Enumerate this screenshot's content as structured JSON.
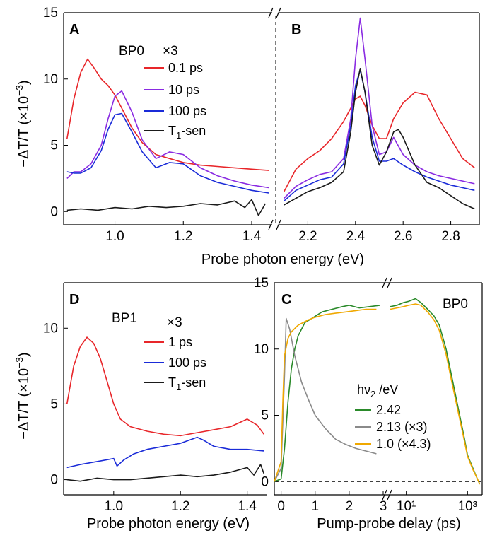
{
  "figure": {
    "top_xlabel": "Probe photon energy (eV)",
    "top_ylabel": "−ΔT/T (×10",
    "top_ylabel_exp": "−3",
    "top_ylabel_end": ")",
    "bottom_left_xlabel": "Probe photon energy (eV)",
    "bottom_left_ylabel": "−ΔT/T (×10",
    "bottom_left_ylabel_exp": "−3",
    "bottom_left_ylabel_end": ")",
    "bottom_right_xlabel": "Pump-probe delay (ps)"
  },
  "chart_data": [
    {
      "panel": "A",
      "type": "line",
      "sample": "BP0",
      "legend_title": "×3",
      "xlim": [
        0.85,
        1.46
      ],
      "ylim": [
        -1,
        15
      ],
      "x_ticks": [
        "1.0",
        "1.2",
        "1.4"
      ],
      "y_ticks": [
        "0",
        "5",
        "10",
        "15"
      ],
      "series": [
        {
          "name": "0.1 ps",
          "color": "#e8262a",
          "x": [
            0.86,
            0.88,
            0.9,
            0.92,
            0.94,
            0.96,
            0.98,
            1.0,
            1.02,
            1.05,
            1.08,
            1.12,
            1.16,
            1.2,
            1.25,
            1.3,
            1.35,
            1.4,
            1.45
          ],
          "y": [
            5.5,
            8.5,
            10.5,
            11.5,
            10.8,
            10.0,
            9.5,
            8.8,
            7.8,
            6.3,
            5.2,
            4.3,
            4.0,
            3.7,
            3.5,
            3.4,
            3.3,
            3.2,
            3.1
          ]
        },
        {
          "name": "10 ps",
          "color": "#8a2be2",
          "x": [
            0.86,
            0.88,
            0.9,
            0.93,
            0.96,
            0.98,
            1.0,
            1.02,
            1.05,
            1.08,
            1.12,
            1.16,
            1.2,
            1.25,
            1.3,
            1.35,
            1.4,
            1.45
          ],
          "y": [
            2.5,
            3.0,
            3.0,
            3.6,
            5.0,
            7.0,
            8.7,
            9.1,
            7.5,
            5.4,
            4.0,
            4.5,
            4.3,
            3.3,
            2.7,
            2.3,
            2.0,
            1.8
          ]
        },
        {
          "name": "100 ps",
          "color": "#1a2bd8",
          "x": [
            0.86,
            0.88,
            0.9,
            0.93,
            0.96,
            0.98,
            1.0,
            1.02,
            1.05,
            1.08,
            1.12,
            1.16,
            1.2,
            1.25,
            1.3,
            1.35,
            1.4,
            1.45
          ],
          "y": [
            3.0,
            2.9,
            2.9,
            3.3,
            4.6,
            6.2,
            7.3,
            7.4,
            6.0,
            4.5,
            3.3,
            3.7,
            3.6,
            2.7,
            2.2,
            1.9,
            1.6,
            1.4
          ]
        },
        {
          "name": "T1-sen",
          "color": "#1a1a1a",
          "x": [
            0.86,
            0.9,
            0.95,
            1.0,
            1.05,
            1.1,
            1.15,
            1.2,
            1.25,
            1.3,
            1.35,
            1.38,
            1.4,
            1.42,
            1.44
          ],
          "y": [
            0.1,
            0.2,
            0.1,
            0.3,
            0.2,
            0.4,
            0.3,
            0.4,
            0.6,
            0.5,
            0.8,
            0.3,
            0.9,
            -0.3,
            0.6
          ]
        }
      ]
    },
    {
      "panel": "B",
      "type": "line",
      "xlim": [
        2.08,
        2.92
      ],
      "ylim": [
        -1,
        15
      ],
      "x_ticks": [
        "2.2",
        "2.4",
        "2.6",
        "2.8"
      ],
      "series": [
        {
          "name": "0.1 ps",
          "color": "#e8262a",
          "x": [
            2.1,
            2.15,
            2.2,
            2.25,
            2.3,
            2.35,
            2.38,
            2.4,
            2.42,
            2.44,
            2.47,
            2.5,
            2.53,
            2.56,
            2.6,
            2.65,
            2.7,
            2.75,
            2.8,
            2.85,
            2.9
          ],
          "y": [
            1.5,
            3.2,
            4.0,
            4.6,
            5.5,
            6.8,
            7.8,
            8.5,
            8.7,
            8.0,
            6.5,
            5.5,
            5.5,
            7.0,
            8.2,
            9.0,
            8.8,
            7.0,
            5.5,
            4.0,
            3.3
          ]
        },
        {
          "name": "10 ps",
          "color": "#8a2be2",
          "x": [
            2.1,
            2.15,
            2.2,
            2.25,
            2.3,
            2.35,
            2.38,
            2.4,
            2.42,
            2.44,
            2.47,
            2.5,
            2.53,
            2.56,
            2.6,
            2.65,
            2.7,
            2.75,
            2.8,
            2.85,
            2.9
          ],
          "y": [
            1.0,
            1.9,
            2.4,
            2.8,
            3.0,
            4.0,
            7.0,
            11.5,
            14.6,
            11.5,
            6.5,
            4.3,
            4.5,
            5.6,
            4.3,
            3.5,
            3.0,
            2.7,
            2.5,
            2.3,
            2.1
          ]
        },
        {
          "name": "100 ps",
          "color": "#1a2bd8",
          "x": [
            2.1,
            2.15,
            2.2,
            2.25,
            2.3,
            2.35,
            2.38,
            2.4,
            2.42,
            2.44,
            2.47,
            2.5,
            2.53,
            2.56,
            2.6,
            2.65,
            2.7,
            2.75,
            2.8,
            2.85,
            2.9
          ],
          "y": [
            0.8,
            1.6,
            2.0,
            2.4,
            2.6,
            3.6,
            6.5,
            9.5,
            10.7,
            9.0,
            5.6,
            3.8,
            3.8,
            4.0,
            3.5,
            3.0,
            2.6,
            2.3,
            2.0,
            1.8,
            1.6
          ]
        },
        {
          "name": "T1-sen",
          "color": "#1a1a1a",
          "x": [
            2.1,
            2.15,
            2.2,
            2.25,
            2.3,
            2.35,
            2.38,
            2.4,
            2.42,
            2.44,
            2.47,
            2.5,
            2.53,
            2.56,
            2.58,
            2.6,
            2.65,
            2.7,
            2.75,
            2.8,
            2.85,
            2.9
          ],
          "y": [
            0.5,
            1.0,
            1.5,
            1.8,
            2.2,
            3.0,
            6.0,
            9.0,
            10.8,
            9.0,
            5.0,
            3.5,
            4.5,
            6.0,
            6.2,
            5.6,
            3.5,
            2.2,
            1.8,
            1.2,
            0.6,
            0.2
          ]
        }
      ]
    },
    {
      "panel": "D",
      "type": "line",
      "sample": "BP1",
      "legend_title": "×3",
      "xlim": [
        0.85,
        1.46
      ],
      "ylim": [
        -1,
        13
      ],
      "x_ticks": [
        "1.0",
        "1.2",
        "1.4"
      ],
      "y_ticks": [
        "0",
        "5",
        "10"
      ],
      "series": [
        {
          "name": "1 ps",
          "color": "#e8262a",
          "x": [
            0.86,
            0.88,
            0.9,
            0.92,
            0.94,
            0.96,
            0.98,
            1.0,
            1.02,
            1.05,
            1.1,
            1.15,
            1.2,
            1.25,
            1.3,
            1.35,
            1.4,
            1.43,
            1.45
          ],
          "y": [
            5.0,
            7.5,
            8.8,
            9.4,
            9.0,
            8.0,
            6.5,
            5.0,
            4.0,
            3.5,
            3.2,
            3.0,
            2.9,
            3.1,
            3.3,
            3.5,
            4.0,
            3.6,
            3.0
          ]
        },
        {
          "name": "100 ps",
          "color": "#1a2bd8",
          "x": [
            0.86,
            0.9,
            0.95,
            1.0,
            1.01,
            1.03,
            1.06,
            1.1,
            1.15,
            1.2,
            1.25,
            1.27,
            1.3,
            1.35,
            1.4,
            1.45
          ],
          "y": [
            0.8,
            1.0,
            1.2,
            1.4,
            0.9,
            1.3,
            1.7,
            2.0,
            2.2,
            2.4,
            2.8,
            2.6,
            2.2,
            2.0,
            2.0,
            1.9
          ]
        },
        {
          "name": "T1-sen",
          "color": "#1a1a1a",
          "x": [
            0.86,
            0.9,
            0.95,
            1.0,
            1.05,
            1.1,
            1.15,
            1.2,
            1.25,
            1.3,
            1.35,
            1.4,
            1.42,
            1.44,
            1.45
          ],
          "y": [
            0.0,
            -0.1,
            0.1,
            0.0,
            0.0,
            0.1,
            0.2,
            0.3,
            0.2,
            0.3,
            0.5,
            0.8,
            0.3,
            1.0,
            0.4
          ]
        }
      ]
    },
    {
      "panel": "C",
      "type": "line",
      "sample": "BP0",
      "legend_title": "hν2 /eV",
      "xlim_linear": [
        -0.2,
        3.0
      ],
      "xlim_log": [
        3,
        3000
      ],
      "x_scale_right": "log",
      "ylim": [
        -1,
        15
      ],
      "x_ticks_linear": [
        "0",
        "1",
        "2",
        "3"
      ],
      "x_ticks_log": [
        "10¹",
        "10³"
      ],
      "y_ticks": [
        "0",
        "5",
        "10",
        "15"
      ],
      "series": [
        {
          "name": "2.42",
          "color": "#2a8a2a",
          "x_linear": [
            -0.2,
            0.0,
            0.1,
            0.2,
            0.3,
            0.4,
            0.5,
            0.7,
            0.9,
            1.2,
            1.5,
            1.8,
            2.0,
            2.3,
            2.6,
            2.9
          ],
          "y_linear": [
            0.0,
            0.2,
            2.5,
            6.0,
            8.5,
            10.0,
            11.0,
            12.0,
            12.3,
            12.8,
            13.0,
            13.2,
            13.3,
            13.1,
            13.2,
            13.3
          ],
          "x_log": [
            3,
            5,
            8,
            12,
            20,
            30,
            50,
            80,
            120,
            200,
            300,
            500,
            800,
            1000,
            1500,
            2000,
            2500
          ],
          "y_log": [
            13.2,
            13.3,
            13.5,
            13.6,
            13.8,
            13.5,
            13.0,
            12.5,
            11.8,
            10.0,
            8.0,
            5.5,
            3.2,
            2.0,
            1.0,
            0.3,
            -0.2
          ]
        },
        {
          "name": "2.13 (×3)",
          "color": "#8a8a8a",
          "x_linear": [
            -0.2,
            0.0,
            0.1,
            0.15,
            0.25,
            0.4,
            0.6,
            0.8,
            1.0,
            1.3,
            1.6,
            1.9,
            2.2,
            2.5,
            2.8
          ],
          "y_linear": [
            0.0,
            1.0,
            8.0,
            12.3,
            11.5,
            9.5,
            7.5,
            6.2,
            5.0,
            4.0,
            3.2,
            2.8,
            2.5,
            2.3,
            2.1
          ]
        },
        {
          "name": "1.0 (×4.3)",
          "color": "#f0a800",
          "x_linear": [
            -0.2,
            0.0,
            0.05,
            0.1,
            0.2,
            0.3,
            0.5,
            0.8,
            1.0,
            1.3,
            1.6,
            1.9,
            2.2,
            2.5,
            2.8
          ],
          "y_linear": [
            0.0,
            1.5,
            6.0,
            9.5,
            10.8,
            11.3,
            11.8,
            12.2,
            12.4,
            12.6,
            12.7,
            12.8,
            12.9,
            13.0,
            13.0
          ],
          "x_log": [
            3,
            5,
            8,
            12,
            20,
            30,
            50,
            80,
            120,
            200,
            300,
            500,
            800,
            1000,
            1500,
            2000,
            2500
          ],
          "y_log": [
            13.0,
            13.1,
            13.2,
            13.3,
            13.4,
            13.3,
            12.8,
            12.2,
            11.4,
            9.6,
            7.6,
            5.2,
            3.0,
            1.9,
            0.9,
            0.3,
            -0.2
          ]
        }
      ]
    }
  ]
}
